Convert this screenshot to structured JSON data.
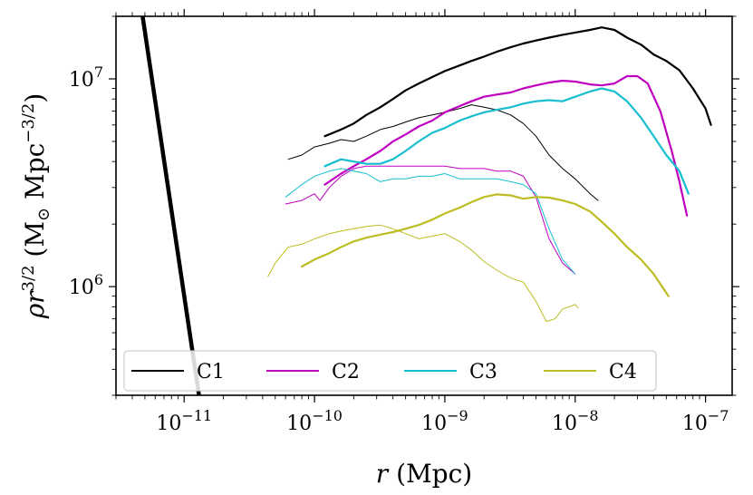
{
  "chart_data": {
    "type": "line",
    "xscale": "log",
    "yscale": "log",
    "xlim": [
      3e-12,
      1.6e-07
    ],
    "ylim": [
      300000,
      20000000
    ],
    "xlabel": "r (Mpc)",
    "ylabel": "ρr^3/2 (M⊙ Mpc^−3/2)",
    "x_ticks": [
      {
        "value": 1e-11,
        "base": "10",
        "exp": "−11"
      },
      {
        "value": 1e-10,
        "base": "10",
        "exp": "−10"
      },
      {
        "value": 1e-09,
        "base": "10",
        "exp": "−9"
      },
      {
        "value": 1e-08,
        "base": "10",
        "exp": "−8"
      },
      {
        "value": 1e-07,
        "base": "10",
        "exp": "−7"
      }
    ],
    "y_ticks": [
      {
        "value": 1000000,
        "base": "10",
        "exp": "6"
      },
      {
        "value": 10000000,
        "base": "10",
        "exp": "7"
      }
    ],
    "legend": {
      "placement": "bottom",
      "entries": [
        {
          "label": "C1",
          "color": "#000000"
        },
        {
          "label": "C2",
          "color": "#c000c0"
        },
        {
          "label": "C3",
          "color": "#17becf"
        },
        {
          "label": "C4",
          "color": "#bcbd22"
        }
      ]
    },
    "series": [
      {
        "name": "reference",
        "color": "#000000",
        "width": 4.5,
        "x": [
          4.8e-12,
          1.3e-11
        ],
        "y": [
          20000000,
          300000
        ]
      },
      {
        "name": "C1",
        "color": "#000000",
        "width": 2.2,
        "x": [
          1.2e-10,
          1.6e-10,
          2e-10,
          2.5e-10,
          3.2e-10,
          4e-10,
          5e-10,
          6.3e-10,
          8e-10,
          1e-09,
          1.3e-09,
          1.6e-09,
          2e-09,
          2.5e-09,
          3.2e-09,
          4e-09,
          5e-09,
          6.3e-09,
          8e-09,
          1e-08,
          1.3e-08,
          1.6e-08,
          2e-08,
          2.5e-08,
          3.2e-08,
          4e-08,
          5e-08,
          6.3e-08,
          8e-08,
          1e-07,
          1.1e-07
        ],
        "y": [
          5300000,
          5700000,
          6100000,
          6700000,
          7300000,
          8000000,
          8800000,
          9500000,
          10200000,
          10900000,
          11600000,
          12200000,
          12800000,
          13500000,
          14200000,
          14800000,
          15300000,
          15800000,
          16300000,
          16700000,
          17200000,
          17700000,
          17200000,
          15800000,
          14600000,
          13100000,
          12200000,
          11000000,
          9000000,
          7200000,
          6000000
        ]
      },
      {
        "name": "C1 thin",
        "color": "#000000",
        "width": 1.0,
        "x": [
          6.3e-11,
          8e-11,
          1e-10,
          1.3e-10,
          1.6e-10,
          2e-10,
          2.5e-10,
          3.2e-10,
          4e-10,
          5e-10,
          6.3e-10,
          8e-10,
          1e-09,
          1.3e-09,
          1.6e-09,
          2e-09,
          2.5e-09,
          3.2e-09,
          4e-09,
          5e-09,
          6.3e-09,
          8e-09,
          1e-08,
          1.3e-08,
          1.5e-08
        ],
        "y": [
          4100000,
          4300000,
          4700000,
          4900000,
          5100000,
          5000000,
          5300000,
          5700000,
          5900000,
          6200000,
          6500000,
          6700000,
          6900000,
          7200000,
          7500000,
          7300000,
          7100000,
          6700000,
          6100000,
          5300000,
          4300000,
          3700000,
          3300000,
          2800000,
          2600000
        ]
      },
      {
        "name": "C2",
        "color": "#c000c0",
        "width": 2.2,
        "x": [
          1.2e-10,
          1.6e-10,
          2e-10,
          2.5e-10,
          3.2e-10,
          4e-10,
          5e-10,
          6.3e-10,
          8e-10,
          1e-09,
          1.3e-09,
          1.6e-09,
          2e-09,
          2.5e-09,
          3.2e-09,
          4e-09,
          5e-09,
          6.3e-09,
          8e-09,
          1e-08,
          1.3e-08,
          1.6e-08,
          2e-08,
          2.5e-08,
          3e-08,
          3.6e-08,
          4.5e-08,
          5.5e-08,
          6.3e-08,
          7.2e-08
        ],
        "y": [
          3100000,
          3500000,
          3800000,
          4100000,
          4500000,
          5000000,
          5400000,
          5900000,
          6300000,
          6900000,
          7400000,
          7800000,
          8200000,
          8400000,
          8600000,
          9000000,
          9300000,
          9600000,
          9800000,
          9700000,
          9400000,
          9300000,
          9500000,
          10300000,
          10300000,
          9500000,
          7000000,
          4500000,
          3200000,
          2200000
        ]
      },
      {
        "name": "C2 thin",
        "color": "#c000c0",
        "width": 1.0,
        "x": [
          6e-11,
          8e-11,
          1e-10,
          1.1e-10,
          1.3e-10,
          1.6e-10,
          2e-10,
          2.5e-10,
          3.2e-10,
          4e-10,
          5e-10,
          6.3e-10,
          8e-10,
          1e-09,
          1.3e-09,
          1.6e-09,
          2e-09,
          2.5e-09,
          3.2e-09,
          4e-09,
          5e-09,
          6.3e-09,
          8e-09,
          1e-08
        ],
        "y": [
          2500000,
          2600000,
          2800000,
          2600000,
          3000000,
          3400000,
          3700000,
          3800000,
          3800000,
          3800000,
          3800000,
          3800000,
          3800000,
          3800000,
          3700000,
          3700000,
          3700000,
          3600000,
          3600000,
          3400000,
          2700000,
          1700000,
          1300000,
          1150000
        ]
      },
      {
        "name": "C3",
        "color": "#17becf",
        "width": 2.2,
        "x": [
          1.2e-10,
          1.6e-10,
          2e-10,
          2.5e-10,
          3.2e-10,
          4e-10,
          5e-10,
          6.3e-10,
          8e-10,
          1e-09,
          1.3e-09,
          1.6e-09,
          2e-09,
          2.5e-09,
          3.2e-09,
          4e-09,
          5e-09,
          6.3e-09,
          8e-09,
          1e-08,
          1.3e-08,
          1.6e-08,
          2e-08,
          2.5e-08,
          3.2e-08,
          4e-08,
          5e-08,
          6.3e-08,
          7.4e-08
        ],
        "y": [
          3800000,
          4100000,
          4000000,
          3900000,
          3900000,
          4100000,
          4500000,
          5000000,
          5500000,
          5800000,
          6300000,
          6600000,
          6900000,
          7100000,
          7300000,
          7600000,
          7800000,
          7900000,
          7800000,
          8200000,
          8700000,
          9000000,
          8700000,
          7800000,
          6500000,
          5300000,
          4300000,
          3600000,
          2800000
        ]
      },
      {
        "name": "C3 thin",
        "color": "#17becf",
        "width": 1.0,
        "x": [
          6e-11,
          8e-11,
          1e-10,
          1.3e-10,
          1.6e-10,
          2e-10,
          2.5e-10,
          3.2e-10,
          4e-10,
          5e-10,
          6.3e-10,
          8e-10,
          1e-09,
          1.3e-09,
          1.6e-09,
          2e-09,
          2.5e-09,
          3.2e-09,
          4e-09,
          5e-09,
          6.3e-09,
          8e-09,
          1e-08
        ],
        "y": [
          2700000,
          3100000,
          3400000,
          3600000,
          3700000,
          3600000,
          3500000,
          3200000,
          3300000,
          3300000,
          3400000,
          3400000,
          3500000,
          3300000,
          3300000,
          3300000,
          3300000,
          3200000,
          3100000,
          2800000,
          1900000,
          1350000,
          1150000
        ]
      },
      {
        "name": "C4",
        "color": "#bcbd22",
        "width": 2.2,
        "x": [
          8e-11,
          1e-10,
          1.3e-10,
          1.6e-10,
          2e-10,
          2.5e-10,
          3.2e-10,
          4e-10,
          5e-10,
          6.3e-10,
          8e-10,
          1e-09,
          1.3e-09,
          1.6e-09,
          2e-09,
          2.5e-09,
          3.2e-09,
          4e-09,
          5e-09,
          6.3e-09,
          8e-09,
          1e-08,
          1.3e-08,
          1.6e-08,
          2e-08,
          2.5e-08,
          3.2e-08,
          4e-08,
          5.2e-08
        ],
        "y": [
          1250000,
          1350000,
          1450000,
          1550000,
          1650000,
          1720000,
          1780000,
          1830000,
          1900000,
          1980000,
          2100000,
          2250000,
          2400000,
          2550000,
          2700000,
          2780000,
          2750000,
          2650000,
          2700000,
          2680000,
          2600000,
          2500000,
          2300000,
          2050000,
          1800000,
          1550000,
          1350000,
          1150000,
          900000
        ]
      },
      {
        "name": "C4 thin",
        "color": "#bcbd22",
        "width": 1.0,
        "x": [
          4.4e-11,
          5e-11,
          6.3e-11,
          8e-11,
          1e-10,
          1.3e-10,
          1.6e-10,
          2e-10,
          2.5e-10,
          3.2e-10,
          4e-10,
          5e-10,
          6.3e-10,
          8e-10,
          1e-09,
          1.3e-09,
          1.6e-09,
          2e-09,
          2.5e-09,
          3.2e-09,
          4e-09,
          5e-09,
          6e-09,
          7e-09,
          8e-09,
          1e-08,
          1.05e-08
        ],
        "y": [
          1120000,
          1300000,
          1550000,
          1600000,
          1700000,
          1800000,
          1850000,
          1900000,
          1950000,
          1980000,
          1900000,
          1800000,
          1700000,
          1750000,
          1800000,
          1650000,
          1500000,
          1320000,
          1200000,
          1100000,
          1050000,
          850000,
          680000,
          700000,
          780000,
          820000,
          790000
        ]
      }
    ]
  }
}
